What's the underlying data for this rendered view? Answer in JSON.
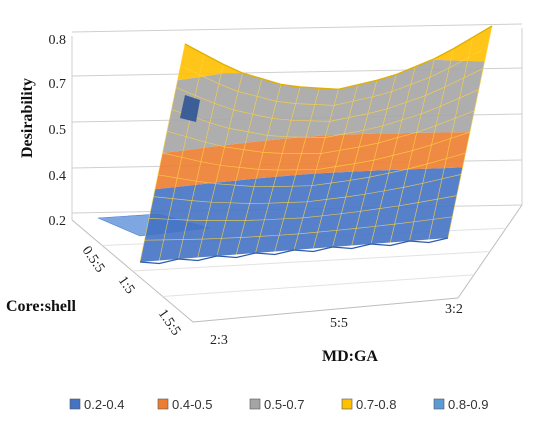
{
  "chart_data": {
    "type": "surface",
    "ylabel": "Desirability",
    "xlabel": "MD:GA",
    "zlabel": "Core:shell",
    "yticks": [
      "0.2",
      "0.4",
      "0.5",
      "0.7",
      "0.8"
    ],
    "xticks": [
      "2:3",
      "5:5",
      "3:2"
    ],
    "zticks": [
      "0.5:5",
      "1:5",
      "1.5:5"
    ],
    "bands": [
      {
        "label": "0.2-0.4",
        "color": "#4472C4",
        "min": 0.2,
        "max": 0.4
      },
      {
        "label": "0.4-0.5",
        "color": "#ED7D31",
        "min": 0.4,
        "max": 0.5
      },
      {
        "label": "0.5-0.7",
        "color": "#A5A5A5",
        "min": 0.5,
        "max": 0.7
      },
      {
        "label": "0.7-0.8",
        "color": "#FFC000",
        "min": 0.7,
        "max": 0.8
      },
      {
        "label": "0.8-0.9",
        "color": "#5B9BD5",
        "min": 0.8,
        "max": 0.9
      }
    ],
    "surface": {
      "md_ga_ratio": [
        0.667,
        0.8,
        0.933,
        1.0,
        1.2,
        1.35,
        1.5
      ],
      "front_curve_desirability": [
        0.8,
        0.7,
        0.64,
        0.62,
        0.65,
        0.71,
        0.8
      ],
      "back_edge_desirability": 0.2
    }
  }
}
